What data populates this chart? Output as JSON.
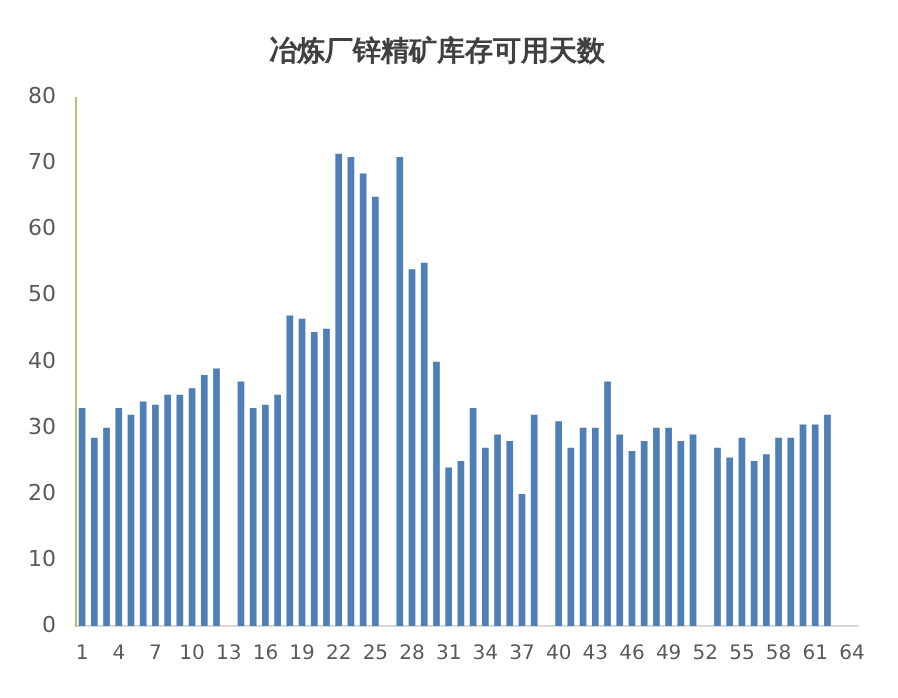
{
  "chart_data": {
    "type": "bar",
    "title": "冶炼厂锌精矿库存可用天数",
    "categories": [
      "1",
      null,
      null,
      "4",
      null,
      null,
      "7",
      null,
      null,
      "10",
      null,
      null,
      "13",
      null,
      null,
      "16",
      null,
      null,
      "19",
      null,
      null,
      "22",
      null,
      null,
      "25",
      null,
      null,
      "28",
      null,
      null,
      "31",
      null,
      null,
      "34",
      null,
      null,
      "37",
      null,
      null,
      "40",
      null,
      null,
      "43",
      null,
      null,
      "46",
      null,
      null,
      "49",
      null,
      null,
      "52",
      null,
      null,
      "55",
      null,
      null,
      "58",
      null,
      null,
      "61",
      null,
      null,
      "64"
    ],
    "values": [
      33,
      28.5,
      30,
      33,
      32,
      34,
      33.5,
      35,
      35,
      36,
      38,
      39,
      null,
      37,
      33,
      33.5,
      35,
      47,
      46.5,
      44.5,
      45,
      71.5,
      71,
      68.5,
      65,
      null,
      71,
      54,
      55,
      40,
      24,
      25,
      33,
      27,
      29,
      28,
      20,
      32,
      null,
      31,
      27,
      30,
      30,
      37,
      29,
      26.5,
      28,
      30,
      30,
      28,
      29,
      null,
      27,
      25.5,
      28.5,
      25,
      26,
      28.5,
      28.5,
      30.5,
      30.5,
      32,
      null,
      null
    ],
    "color": "#4f7fb5",
    "ylim": [
      0,
      80
    ],
    "yticks": [
      0,
      10,
      20,
      30,
      40,
      50,
      60,
      70,
      80
    ],
    "grid": false,
    "legend": false
  }
}
